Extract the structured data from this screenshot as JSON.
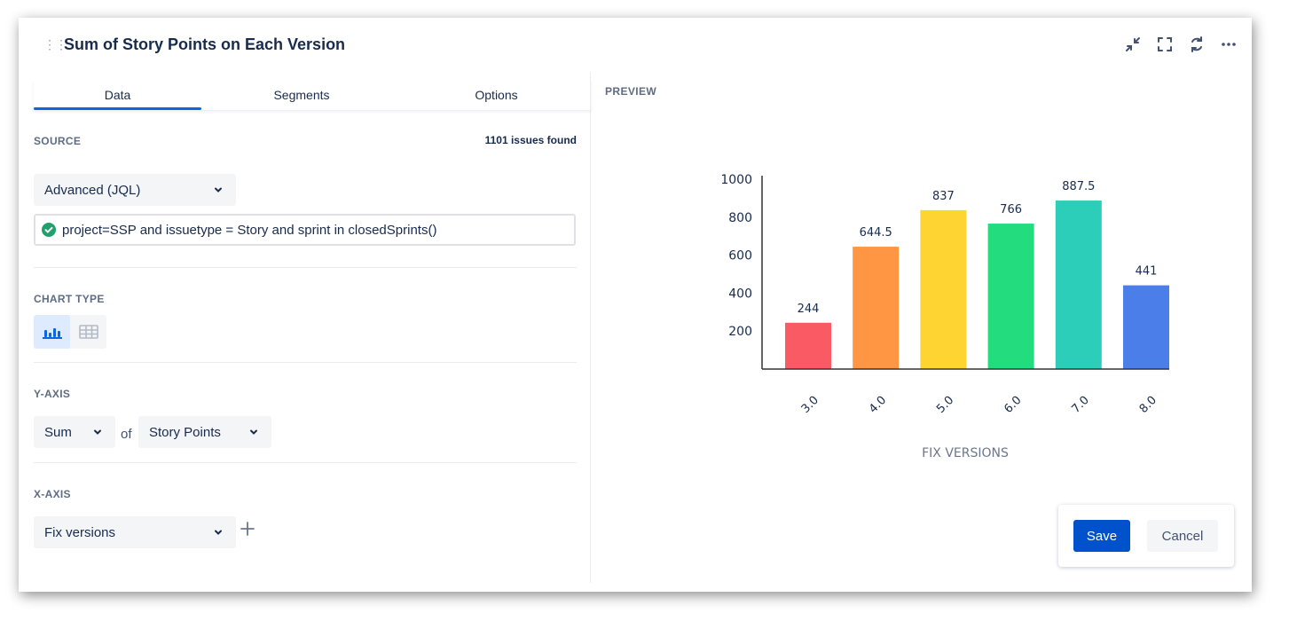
{
  "header": {
    "title": "Sum of Story Points on Each Version",
    "icons": [
      "collapse-icon",
      "fullscreen-icon",
      "refresh-icon",
      "more-icon"
    ]
  },
  "tabs": [
    {
      "label": "Data",
      "active": true
    },
    {
      "label": "Segments",
      "active": false
    },
    {
      "label": "Options",
      "active": false
    }
  ],
  "source": {
    "label": "SOURCE",
    "issues_found": "1101 issues found",
    "mode": "Advanced (JQL)",
    "jql": "project=SSP and issuetype = Story and sprint in closedSprints()"
  },
  "chart_type": {
    "label": "CHART TYPE",
    "options": [
      "bar-chart-icon",
      "table-icon"
    ],
    "selected": "bar-chart-icon"
  },
  "y_axis": {
    "label": "Y-AXIS",
    "aggregation": "Sum",
    "of_label": "of",
    "field": "Story Points"
  },
  "x_axis": {
    "label": "X-AXIS",
    "field": "Fix versions"
  },
  "preview": {
    "label": "PREVIEW"
  },
  "colors": {
    "primary": "#0052cc",
    "tab_active": "#0c66e4",
    "success": "#22a06b"
  },
  "chart_data": {
    "type": "bar",
    "categories": [
      "3.0",
      "4.0",
      "5.0",
      "6.0",
      "7.0",
      "8.0"
    ],
    "values": [
      244,
      644.5,
      837,
      766,
      887.5,
      441
    ],
    "value_labels": [
      "244",
      "644.5",
      "837",
      "766",
      "887.5",
      "441"
    ],
    "colors": [
      "#f95a63",
      "#ff9643",
      "#fed432",
      "#22dc7e",
      "#2ccdb9",
      "#4c7eea"
    ],
    "xlabel": "FIX VERSIONS",
    "ylabel": "",
    "ylim": [
      0,
      1000
    ],
    "yticks": [
      200,
      400,
      600,
      800,
      1000
    ],
    "grid": false
  },
  "actions": {
    "save": "Save",
    "cancel": "Cancel"
  }
}
